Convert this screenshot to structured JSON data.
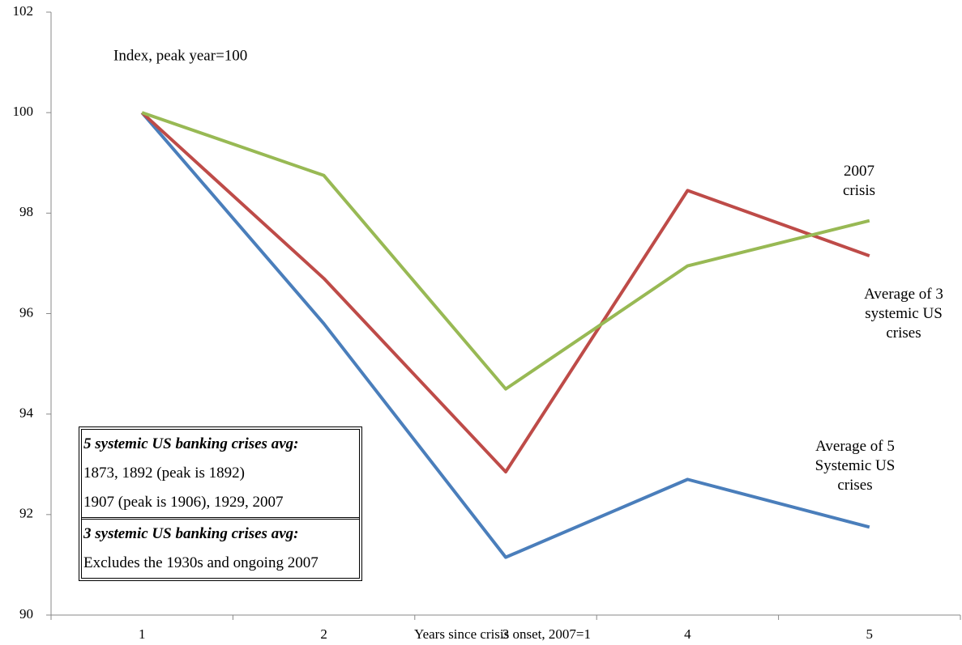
{
  "chart_data": {
    "type": "line",
    "annotation": "Index, peak year=100",
    "x_label": "Years since crisis onset, 2007=1",
    "categories": [
      "1",
      "2",
      "3",
      "4",
      "5"
    ],
    "series": [
      {
        "name": "Average of 5 Systemic US crises",
        "color": "#4a7ebb",
        "values": [
          100,
          95.8,
          91.15,
          92.7,
          91.75
        ]
      },
      {
        "name": "Average of 3 systemic US crises",
        "color": "#be4b48",
        "values": [
          100,
          96.7,
          92.85,
          98.45,
          97.15
        ]
      },
      {
        "name": "2007 crisis",
        "color": "#98b954",
        "values": [
          100,
          98.75,
          94.5,
          96.95,
          97.85
        ]
      }
    ],
    "ylim": [
      90,
      102
    ],
    "yticks": [
      90,
      92,
      94,
      96,
      98,
      100,
      102
    ],
    "grid": false,
    "notes": [
      "5 systemic US banking crises avg:",
      "1873, 1892 (peak is 1892)",
      "1907 (peak is 1906), 1929, 2007",
      "3 systemic US banking crises avg:",
      "Excludes the 1930s and ongoing 2007"
    ]
  }
}
